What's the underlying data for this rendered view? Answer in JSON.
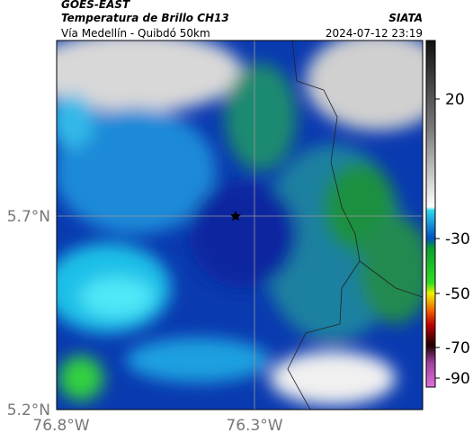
{
  "header": {
    "satellite": "GOES-EAST",
    "product": "Temperatura de Brillo CH13",
    "route": "Vía Medellín - Quibdó 50km",
    "source": "SIATA",
    "timestamp": "2024-07-12 23:19"
  },
  "axes": {
    "latitude_labels": [
      "5.7°N",
      "5.2°N"
    ],
    "longitude_labels": [
      "76.8°W",
      "76.3°W"
    ]
  },
  "colorbar": {
    "ticks": [
      20,
      -30,
      -50,
      -70,
      -90
    ]
  }
}
